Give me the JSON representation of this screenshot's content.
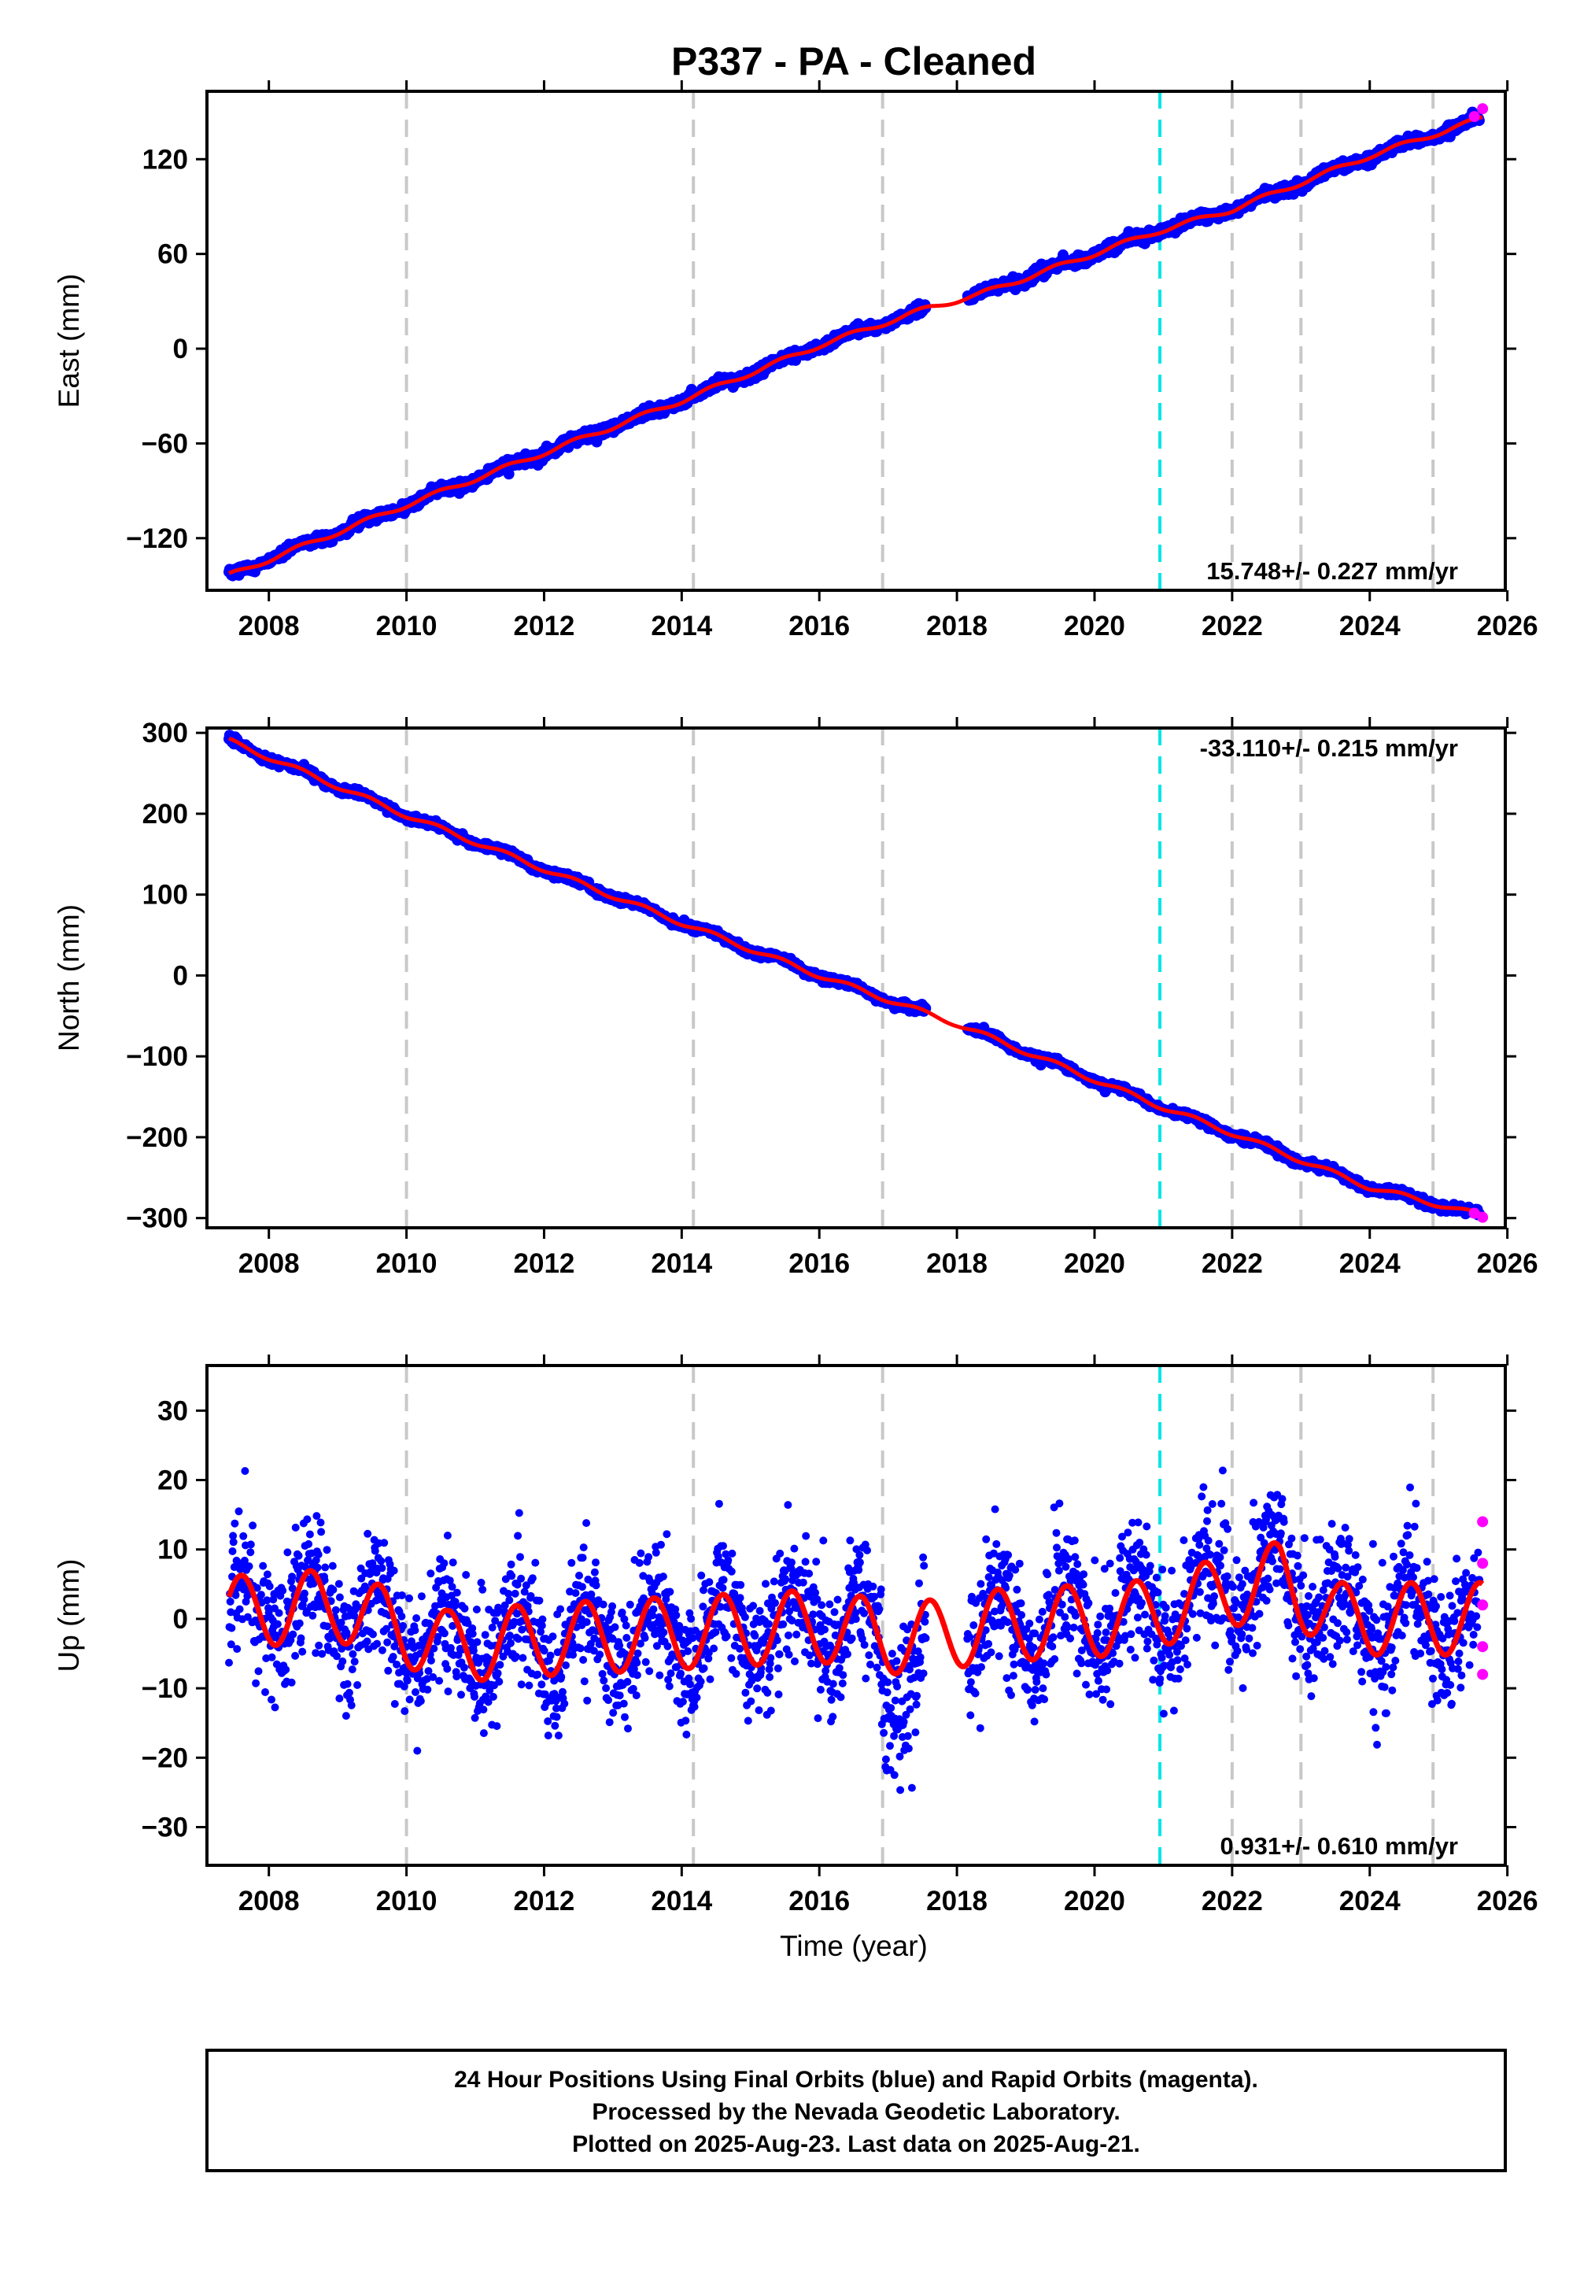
{
  "title": "P337  - PA - Cleaned",
  "colors": {
    "final_orbits": "#0000ff",
    "rapid_orbits": "#ff00ff",
    "model": "#ff0000",
    "antenna_change": "#c8c8c8",
    "equipment_change": "#00e5e5"
  },
  "event_lines": {
    "gray": [
      2010.0,
      2014.17,
      2016.92,
      2022.0,
      2023.0,
      2024.92
    ],
    "cyan": [
      2020.95
    ]
  },
  "chart_data": [
    {
      "type": "scatter",
      "component": "east",
      "ylabel": "East (mm)",
      "xlim": [
        2007.1,
        2025.97
      ],
      "ylim": [
        -153,
        163
      ],
      "yticks": [
        -120,
        -60,
        0,
        60,
        120
      ],
      "xticks": [
        2008,
        2010,
        2012,
        2014,
        2016,
        2018,
        2020,
        2022,
        2024,
        2026
      ],
      "rate_label": "15.748+/- 0.227 mm/yr",
      "rate_position": "bottom-right",
      "rate_mm_per_yr": 15.748,
      "rate_sigma": 0.227,
      "series": [
        {
          "name": "Final Orbits",
          "x": [
            2007.4,
            2010.0,
            2014.0,
            2016.0,
            2017.6,
            2018.3,
            2020.9,
            2022.0,
            2024.0,
            2025.64
          ],
          "values": [
            -144,
            -99,
            -33,
            2,
            26,
            34,
            74,
            88,
            122,
            146
          ]
        },
        {
          "name": "Rapid Orbits",
          "x": [
            2025.52,
            2025.64
          ],
          "values": [
            147,
            152
          ]
        }
      ]
    },
    {
      "type": "scatter",
      "component": "north",
      "ylabel": "North (mm)",
      "xlim": [
        2007.1,
        2025.97
      ],
      "ylim": [
        -312,
        306
      ],
      "yticks": [
        -300,
        -200,
        -100,
        0,
        100,
        200,
        300
      ],
      "xticks": [
        2008,
        2010,
        2012,
        2014,
        2016,
        2018,
        2020,
        2022,
        2024,
        2026
      ],
      "rate_label": "-33.110+/- 0.215 mm/yr",
      "rate_position": "top-right",
      "rate_mm_per_yr": -33.11,
      "rate_sigma": 0.215,
      "series": [
        {
          "name": "Final Orbits",
          "x": [
            2007.4,
            2010.0,
            2014.0,
            2016.0,
            2018.0,
            2020.9,
            2022.0,
            2024.0,
            2025.64
          ],
          "values": [
            291,
            198,
            65,
            0,
            -60,
            -160,
            -195,
            -262,
            -297
          ]
        },
        {
          "name": "Rapid Orbits",
          "x": [
            2025.52,
            2025.64
          ],
          "values": [
            -294,
            -299
          ]
        }
      ]
    },
    {
      "type": "scatter",
      "component": "up",
      "ylabel": "Up (mm)",
      "xlabel": "Time (year)",
      "xlim": [
        2007.1,
        2025.97
      ],
      "ylim": [
        -35.5,
        36.5
      ],
      "yticks": [
        -30,
        -20,
        -10,
        0,
        10,
        20,
        30
      ],
      "xticks": [
        2008,
        2010,
        2012,
        2014,
        2016,
        2018,
        2020,
        2022,
        2024,
        2026
      ],
      "rate_label": "0.931+/- 0.610 mm/yr",
      "rate_position": "bottom-right",
      "rate_mm_per_yr": 0.931,
      "rate_sigma": 0.61,
      "annual_amplitude_mm": 5.2,
      "series": [
        {
          "name": "Final Orbits",
          "x": [
            2007.5,
            2008.7,
            2009.7,
            2010.2,
            2011.2,
            2016.7,
            2017.2,
            2018.6,
            2021.8,
            2022.6,
            2023.2,
            2025.5
          ],
          "values": [
            3,
            7,
            8,
            -9,
            -8,
            4,
            -9,
            3,
            9,
            12,
            -4,
            -3
          ]
        },
        {
          "name": "Rapid Orbits",
          "x": [
            2025.64,
            2025.64,
            2025.64,
            2025.64,
            2025.64
          ],
          "values": [
            14,
            8,
            2,
            -4,
            -8
          ]
        }
      ]
    }
  ],
  "footer": {
    "line1": "24 Hour Positions Using Final Orbits (blue) and Rapid Orbits (magenta).",
    "line2": "Processed by the Nevada Geodetic Laboratory.",
    "line3": "Plotted on 2025-Aug-23. Last data on 2025-Aug-21."
  }
}
